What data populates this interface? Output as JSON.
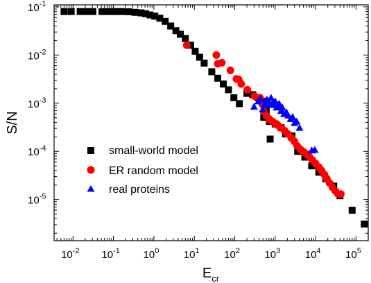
{
  "chart_data": {
    "type": "scatter",
    "xscale": "log",
    "yscale": "log",
    "xlabel": "E",
    "xlabel_sub": "cr",
    "ylabel": "S/N",
    "xlim": [
      0.0034,
      200000
    ],
    "ylim": [
      1.4e-06,
      0.11
    ],
    "grid": false,
    "legend_position": "lower-left",
    "x_ticks": [
      {
        "value": 0.01,
        "base": "10",
        "exp": "-2"
      },
      {
        "value": 0.1,
        "base": "10",
        "exp": "-1"
      },
      {
        "value": 1,
        "base": "10",
        "exp": "0"
      },
      {
        "value": 10,
        "base": "10",
        "exp": "1"
      },
      {
        "value": 100,
        "base": "10",
        "exp": "2"
      },
      {
        "value": 1000,
        "base": "10",
        "exp": "3"
      },
      {
        "value": 10000,
        "base": "10",
        "exp": "4"
      },
      {
        "value": 100000,
        "base": "10",
        "exp": "5"
      }
    ],
    "y_ticks": [
      {
        "value": 1e-05,
        "base": "10",
        "exp": "-5"
      },
      {
        "value": 0.0001,
        "base": "10",
        "exp": "-4"
      },
      {
        "value": 0.001,
        "base": "10",
        "exp": "-3"
      },
      {
        "value": 0.01,
        "base": "10",
        "exp": "-2"
      },
      {
        "value": 0.1,
        "base": "10",
        "exp": "-1"
      }
    ],
    "series": [
      {
        "name": "small-world model",
        "marker": "square",
        "color": "#000000",
        "points": [
          [
            0.006,
            0.08
          ],
          [
            0.009,
            0.08
          ],
          [
            0.015,
            0.08
          ],
          [
            0.022,
            0.08
          ],
          [
            0.031,
            0.08
          ],
          [
            0.052,
            0.08
          ],
          [
            0.068,
            0.08
          ],
          [
            0.09,
            0.08
          ],
          [
            0.12,
            0.08
          ],
          [
            0.17,
            0.08
          ],
          [
            0.24,
            0.079
          ],
          [
            0.34,
            0.077
          ],
          [
            0.48,
            0.075
          ],
          [
            0.62,
            0.072
          ],
          [
            0.8,
            0.068
          ],
          [
            1.05,
            0.064
          ],
          [
            1.4,
            0.058
          ],
          [
            1.9,
            0.05
          ],
          [
            2.6,
            0.04
          ],
          [
            3.5,
            0.032
          ],
          [
            4.5,
            0.027
          ],
          [
            6,
            0.022
          ],
          [
            8.1,
            0.016
          ],
          [
            10.5,
            0.012
          ],
          [
            13.5,
            0.009
          ],
          [
            17.5,
            0.0068
          ],
          [
            27,
            0.0045
          ],
          [
            38,
            0.0033
          ],
          [
            52,
            0.0025
          ],
          [
            70,
            0.0019
          ],
          [
            95,
            0.0013
          ],
          [
            130,
            0.00098
          ],
          [
            200,
            0.0016
          ],
          [
            280,
            0.0015
          ],
          [
            380,
            0.0013
          ],
          [
            470,
            0.0011
          ],
          [
            600,
            0.00069
          ],
          [
            520,
            0.00051
          ],
          [
            720,
            0.00042
          ],
          [
            1000,
            0.00037
          ],
          [
            1400,
            0.00031
          ],
          [
            750,
            0.00018
          ],
          [
            1800,
            0.00023
          ],
          [
            2600,
            0.00021
          ],
          [
            3600,
            0.0001
          ],
          [
            5400,
            7.6e-05
          ],
          [
            8000,
            5e-05
          ],
          [
            12000,
            3.7e-05
          ],
          [
            18000,
            2.7e-05
          ],
          [
            28000,
            1.9e-05
          ],
          [
            40000,
            1.2e-05
          ],
          [
            80000,
            6e-06
          ],
          [
            160000,
            3.1e-06
          ]
        ]
      },
      {
        "name": "ER random model",
        "marker": "circle",
        "color": "#ff0000",
        "points": [
          [
            6.5,
            0.016
          ],
          [
            35,
            0.01
          ],
          [
            38,
            0.0066
          ],
          [
            48,
            0.0069
          ],
          [
            78,
            0.0048
          ],
          [
            110,
            0.0032
          ],
          [
            125,
            0.0031
          ],
          [
            145,
            0.0025
          ],
          [
            205,
            0.0019
          ],
          [
            310,
            0.0014
          ],
          [
            420,
            0.0013
          ],
          [
            480,
            0.00095
          ],
          [
            520,
            0.00068
          ],
          [
            610,
            0.00054
          ],
          [
            710,
            0.00047
          ],
          [
            850,
            0.00042
          ],
          [
            980,
            0.00038
          ],
          [
            1150,
            0.00035
          ],
          [
            1400,
            0.00031
          ],
          [
            1700,
            0.00027
          ],
          [
            2050,
            0.00023
          ],
          [
            2500,
            0.00019
          ],
          [
            3000,
            0.00016
          ],
          [
            3500,
            0.00013
          ],
          [
            4200,
            0.00011
          ],
          [
            5000,
            9.8e-05
          ],
          [
            6000,
            8.8e-05
          ],
          [
            7000,
            7.7e-05
          ],
          [
            8300,
            6.6e-05
          ],
          [
            10000,
            5.6e-05
          ],
          [
            12000,
            4.7e-05
          ],
          [
            14000,
            4e-05
          ],
          [
            16500,
            3.3e-05
          ],
          [
            19000,
            2.7e-05
          ],
          [
            22000,
            2.2e-05
          ],
          [
            26000,
            1.8e-05
          ],
          [
            31000,
            1.5e-05
          ],
          [
            36000,
            1.3e-05
          ],
          [
            42000,
            1.3e-05
          ]
        ]
      },
      {
        "name": "real proteins",
        "marker": "triangle",
        "color": "#0000ff",
        "points": [
          [
            300,
            0.00085
          ],
          [
            380,
            0.0011
          ],
          [
            430,
            0.0012
          ],
          [
            490,
            0.00075
          ],
          [
            550,
            0.00095
          ],
          [
            620,
            0.0012
          ],
          [
            680,
            0.0011
          ],
          [
            720,
            0.00095
          ],
          [
            790,
            0.0013
          ],
          [
            850,
            0.001
          ],
          [
            930,
            0.00092
          ],
          [
            1000,
            0.0011
          ],
          [
            1080,
            0.00082
          ],
          [
            1150,
            0.0009
          ],
          [
            1250,
            0.00098
          ],
          [
            1400,
            0.0007
          ],
          [
            1500,
            0.00082
          ],
          [
            1650,
            0.0006
          ],
          [
            1900,
            0.00065
          ],
          [
            2100,
            0.00056
          ],
          [
            2400,
            0.00047
          ],
          [
            2700,
            0.00052
          ],
          [
            3000,
            0.00039
          ],
          [
            3400,
            0.00042
          ],
          [
            4000,
            0.00031
          ],
          [
            8000,
            0.000105
          ],
          [
            9500,
            0.000108
          ]
        ]
      }
    ]
  }
}
